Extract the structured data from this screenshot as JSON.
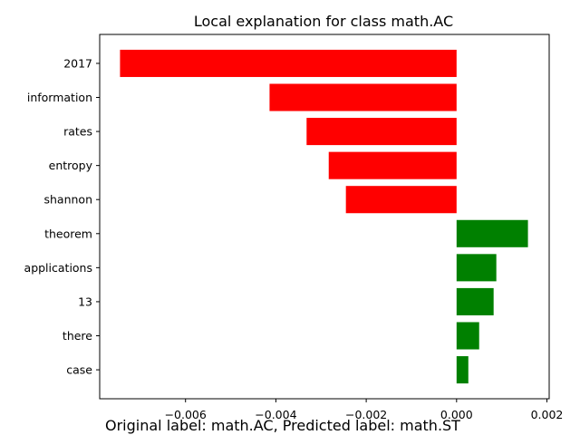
{
  "chart_data": {
    "type": "bar",
    "orientation": "horizontal",
    "title": "Local explanation for class math.AC",
    "categories": [
      "2017",
      "information",
      "rates",
      "entropy",
      "shannon",
      "theorem",
      "applications",
      "13",
      "there",
      "case"
    ],
    "values": [
      -0.00745,
      -0.00414,
      -0.00332,
      -0.00283,
      -0.00245,
      0.00158,
      0.00088,
      0.00082,
      0.0005,
      0.00026
    ],
    "xlim": [
      -0.0079,
      0.00205
    ],
    "xticks": [
      -0.006,
      -0.004,
      -0.002,
      0.0,
      0.002
    ],
    "xtick_labels": [
      "−0.006",
      "−0.004",
      "−0.002",
      "0.000",
      "0.002"
    ],
    "colors": {
      "negative": "#ff0000",
      "positive": "#008000"
    },
    "caption": "Original label: math.AC, Predicted label: math.ST",
    "grid": false
  }
}
